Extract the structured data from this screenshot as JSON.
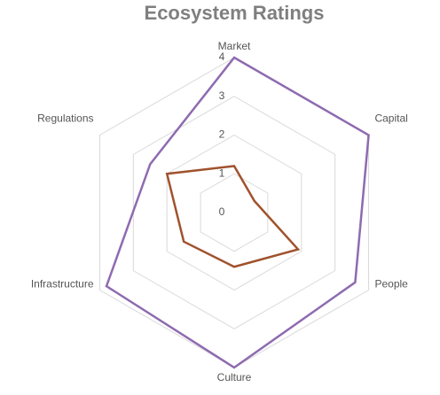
{
  "chart_data": {
    "type": "radar",
    "title": "Ecosystem Ratings",
    "categories": [
      "Market",
      "Capital",
      "People",
      "Culture",
      "Infrastructure",
      "Regulations"
    ],
    "series": [
      {
        "color": "#8e6bb0",
        "values": [
          4,
          4,
          3.6,
          4,
          3.8,
          2.5
        ]
      },
      {
        "color": "#a0522d",
        "values": [
          1.2,
          0.6,
          1.9,
          1.4,
          1.5,
          2.0
        ]
      }
    ],
    "ylim": [
      0,
      4
    ],
    "yticks": [
      0,
      1,
      2,
      3,
      4
    ],
    "grid": true
  }
}
